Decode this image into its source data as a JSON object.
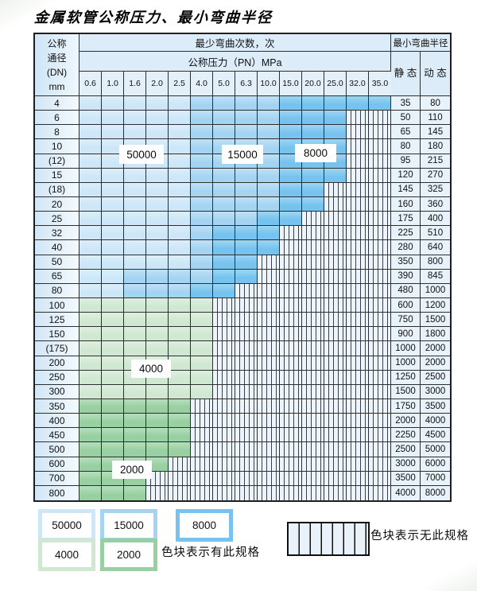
{
  "title": "金属软管公称压力、最小弯曲半径",
  "table": {
    "corner": {
      "line1": "公称",
      "line2": "通径",
      "line3": "(DN)",
      "line4": "mm"
    },
    "bend_cycles_header": "最少弯曲次数，次",
    "pressure_header": "公称压力（PN）MPa",
    "radius_header": "最小弯曲半径",
    "static_header": "静 态",
    "dynamic_header": "动 态",
    "pressures": [
      "0.6",
      "1.0",
      "1.6",
      "2.0",
      "2.5",
      "4.0",
      "5.0",
      "6.3",
      "10.0",
      "15.0",
      "20.0",
      "25.0",
      "32.0",
      "35.0"
    ],
    "cell_colors": {
      "L": "#cde7f8",
      "M": "#a5d4f2",
      "D": "#75c3ee",
      "G": "#d0e8d2",
      "g": "#98d0a1"
    },
    "cycle_values": {
      "L": "50000",
      "M": "15000",
      "D": "8000",
      "G": "4000",
      "g": "2000",
      "X": "none"
    },
    "rows": [
      {
        "dn": "4",
        "cells": "LLLLLMMMMDDDDD",
        "static": "35",
        "dynamic": "80"
      },
      {
        "dn": "6",
        "cells": "LLLLLMMMMDDDXX",
        "static": "50",
        "dynamic": "110"
      },
      {
        "dn": "8",
        "cells": "LLLLLMMMMDDDXX",
        "static": "65",
        "dynamic": "145"
      },
      {
        "dn": "10",
        "cells": "LLLLLMMMMDDDXX",
        "static": "80",
        "dynamic": "180"
      },
      {
        "dn": "(12)",
        "cells": "LLLLLMMMMDDDXX",
        "static": "95",
        "dynamic": "215"
      },
      {
        "dn": "15",
        "cells": "LLLLLMMMMDDDXX",
        "static": "120",
        "dynamic": "270"
      },
      {
        "dn": "(18)",
        "cells": "LLLLLMMMMDDXXX",
        "static": "145",
        "dynamic": "325"
      },
      {
        "dn": "20",
        "cells": "LLLLLMMMMDDXXX",
        "static": "160",
        "dynamic": "360"
      },
      {
        "dn": "25",
        "cells": "LLLLLMMMDDXXXX",
        "static": "175",
        "dynamic": "400"
      },
      {
        "dn": "32",
        "cells": "LLLLLMDDDXXXXX",
        "static": "225",
        "dynamic": "510"
      },
      {
        "dn": "40",
        "cells": "LLLLLMDDDXXXXX",
        "static": "280",
        "dynamic": "640"
      },
      {
        "dn": "50",
        "cells": "LLLLLMDDXXXXXX",
        "static": "350",
        "dynamic": "800"
      },
      {
        "dn": "65",
        "cells": "LLMMMMDDXXXXXX",
        "static": "390",
        "dynamic": "845"
      },
      {
        "dn": "80",
        "cells": "LLMMMDDXXXXXXX",
        "static": "480",
        "dynamic": "1000"
      },
      {
        "dn": "100",
        "cells": "GGGGGGXXXXXXXX",
        "static": "600",
        "dynamic": "1200"
      },
      {
        "dn": "125",
        "cells": "GGGGGGXXXXXXXX",
        "static": "750",
        "dynamic": "1500"
      },
      {
        "dn": "150",
        "cells": "GGGGGGXXXXXXXX",
        "static": "900",
        "dynamic": "1800"
      },
      {
        "dn": "(175)",
        "cells": "GGGGGGXXXXXXXX",
        "static": "1000",
        "dynamic": "2000"
      },
      {
        "dn": "200",
        "cells": "GGGGGGXXXXXXXX",
        "static": "1000",
        "dynamic": "2000"
      },
      {
        "dn": "250",
        "cells": "GGGGGGXXXXXXXX",
        "static": "1250",
        "dynamic": "2500"
      },
      {
        "dn": "300",
        "cells": "GGGGGGXXXXXXXX",
        "static": "1500",
        "dynamic": "3000"
      },
      {
        "dn": "350",
        "cells": "gggggXXXXXXXXX",
        "static": "1750",
        "dynamic": "3500"
      },
      {
        "dn": "400",
        "cells": "gggggXXXXXXXXX",
        "static": "2000",
        "dynamic": "4000"
      },
      {
        "dn": "450",
        "cells": "gggggXXXXXXXXX",
        "static": "2250",
        "dynamic": "4500"
      },
      {
        "dn": "500",
        "cells": "gggggXXXXXXXXX",
        "static": "2500",
        "dynamic": "5000"
      },
      {
        "dn": "600",
        "cells": "ggggXXXXXXXXXX",
        "static": "3000",
        "dynamic": "6000"
      },
      {
        "dn": "700",
        "cells": "gggXXXXXXXXXXX",
        "static": "3500",
        "dynamic": "7000"
      },
      {
        "dn": "800",
        "cells": "gggXXXXXXXXXXX",
        "static": "4000",
        "dynamic": "8000"
      }
    ]
  },
  "overlays": [
    "50000",
    "15000",
    "8000",
    "4000",
    "2000"
  ],
  "legend": {
    "items": [
      {
        "label": "50000",
        "color": "L"
      },
      {
        "label": "15000",
        "color": "M"
      },
      {
        "label": "8000",
        "color": "D"
      },
      {
        "label": "4000",
        "color": "G"
      },
      {
        "label": "2000",
        "color": "g"
      }
    ],
    "available_note": "色块表示有此规格",
    "unavailable_note": "色块表示无此规格"
  }
}
